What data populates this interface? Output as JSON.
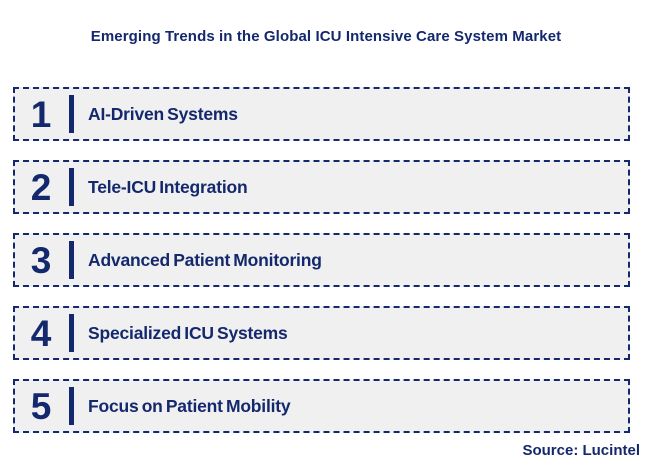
{
  "header": {
    "title": "Emerging Trends in the Global ICU Intensive Care System Market"
  },
  "list": {
    "items": [
      {
        "number": "1",
        "label": "AI-Driven Systems"
      },
      {
        "number": "2",
        "label": "Tele-ICU Integration"
      },
      {
        "number": "3",
        "label": "Advanced Patient Monitoring"
      },
      {
        "number": "4",
        "label": "Specialized ICU Systems"
      },
      {
        "number": "5",
        "label": "Focus on Patient Mobility"
      }
    ]
  },
  "footer": {
    "source": "Source: Lucintel"
  },
  "colors": {
    "accent_navy": "#14286e",
    "box_background": "#f0f0f0",
    "page_background": "#ffffff"
  }
}
